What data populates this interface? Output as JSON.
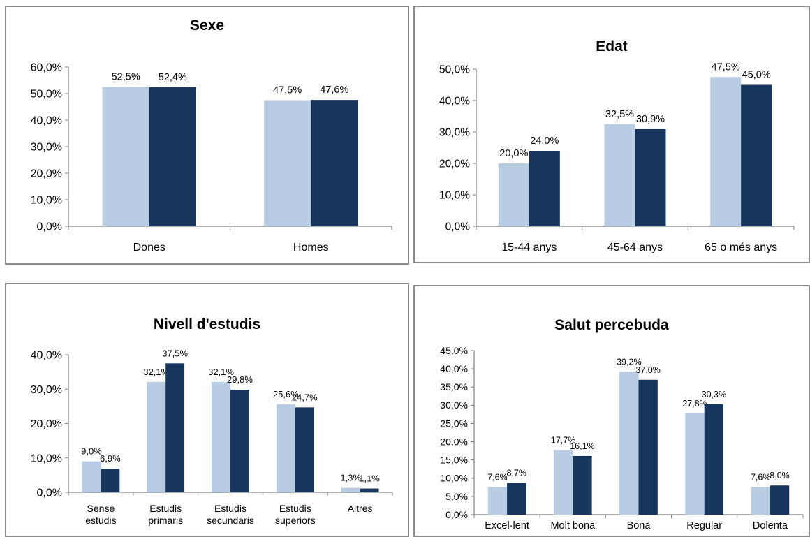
{
  "colors": {
    "series_a": "#b8cce4",
    "series_b": "#17365d",
    "frame": "#8c8c8c",
    "axis": "#7f7f7f"
  },
  "chart_data": [
    {
      "type": "bar",
      "title": "Sexe",
      "categories": [
        "Dones",
        "Homes"
      ],
      "series": [
        {
          "values": [
            52.5,
            47.5
          ],
          "labels": [
            "52,5%",
            "47,5%"
          ]
        },
        {
          "values": [
            52.4,
            47.6
          ],
          "labels": [
            "52,4%",
            "47,6%"
          ]
        }
      ],
      "ylim": [
        0,
        60
      ],
      "yticks": [
        "0,0%",
        "10,0%",
        "20,0%",
        "30,0%",
        "40,0%",
        "50,0%",
        "60,0%"
      ],
      "grid": false
    },
    {
      "type": "bar",
      "title": "Edat",
      "categories": [
        "15-44 anys",
        "45-64 anys",
        "65 o més anys"
      ],
      "series": [
        {
          "values": [
            20.0,
            32.5,
            47.5
          ],
          "labels": [
            "20,0%",
            "32,5%",
            "47,5%"
          ]
        },
        {
          "values": [
            24.0,
            30.9,
            45.0
          ],
          "labels": [
            "24,0%",
            "30,9%",
            "45,0%"
          ]
        }
      ],
      "ylim": [
        0,
        50
      ],
      "yticks": [
        "0,0%",
        "10,0%",
        "20,0%",
        "30,0%",
        "40,0%",
        "50,0%"
      ],
      "grid": false
    },
    {
      "type": "bar",
      "title": "Nivell d'estudis",
      "categories": [
        [
          "Sense",
          "estudis"
        ],
        [
          "Estudis",
          "primaris"
        ],
        [
          "Estudis",
          "secundaris"
        ],
        [
          "Estudis",
          "superiors"
        ],
        [
          "Altres"
        ]
      ],
      "series": [
        {
          "values": [
            9.0,
            32.1,
            32.1,
            25.6,
            1.3
          ],
          "labels": [
            "9,0%",
            "32,1%",
            "32,1%",
            "25,6%",
            "1,3%"
          ]
        },
        {
          "values": [
            6.9,
            37.5,
            29.8,
            24.7,
            1.1
          ],
          "labels": [
            "6,9%",
            "37,5%",
            "29,8%",
            "24,7%",
            "1,1%"
          ]
        }
      ],
      "ylim": [
        0,
        40
      ],
      "yticks": [
        "0,0%",
        "10,0%",
        "20,0%",
        "30,0%",
        "40,0%"
      ],
      "grid": false
    },
    {
      "type": "bar",
      "title": "Salut percebuda",
      "categories": [
        "Excel·lent",
        "Molt bona",
        "Bona",
        "Regular",
        "Dolenta"
      ],
      "series": [
        {
          "values": [
            7.6,
            17.7,
            39.2,
            27.8,
            7.6
          ],
          "labels": [
            "7,6%",
            "17,7%",
            "39,2%",
            "27,8%",
            "7,6%"
          ]
        },
        {
          "values": [
            8.7,
            16.1,
            37.0,
            30.3,
            8.0
          ],
          "labels": [
            "8,7%",
            "16,1%",
            "37,0%",
            "30,3%",
            "8,0%"
          ]
        }
      ],
      "ylim": [
        0,
        45
      ],
      "yticks": [
        "0,0%",
        "5,0%",
        "10,0%",
        "15,0%",
        "20,0%",
        "25,0%",
        "30,0%",
        "35,0%",
        "40,0%",
        "45,0%"
      ],
      "grid": false
    }
  ]
}
